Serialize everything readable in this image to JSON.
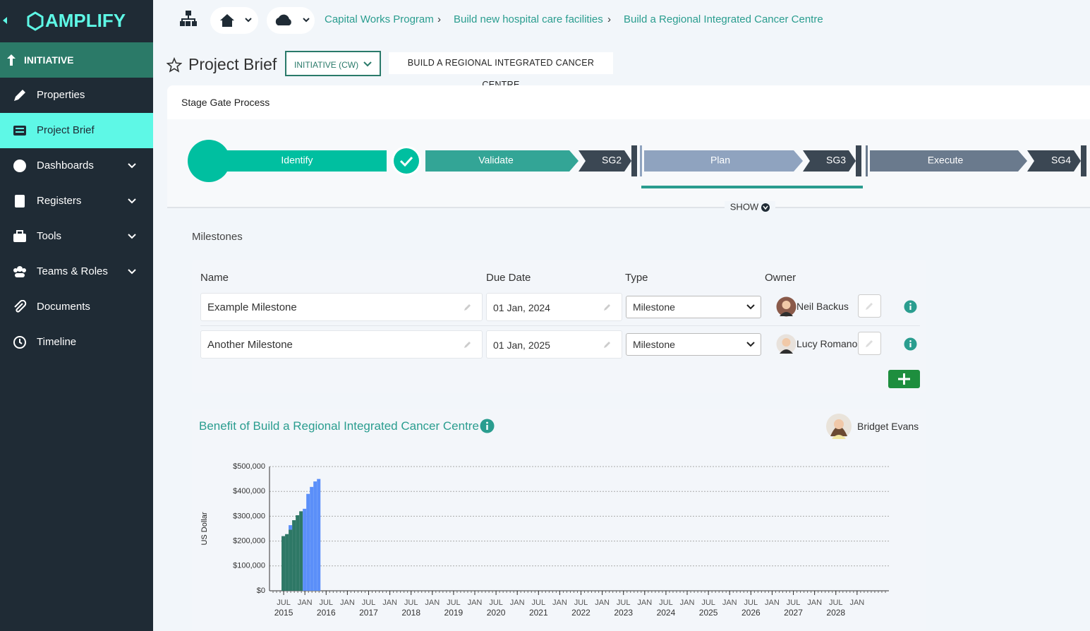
{
  "brand": "AMPLIFY",
  "sidebar": {
    "section": "INITIATIVE",
    "items": [
      "Properties",
      "Project Brief",
      "Dashboards",
      "Registers",
      "Tools",
      "Teams & Roles",
      "Documents",
      "Timeline"
    ]
  },
  "breadcrumbs": [
    "Capital Works Program",
    "Build new hospital care facilities",
    "Build a Regional Integrated Cancer Centre"
  ],
  "page": {
    "title": "Project Brief",
    "select": "INITIATIVE (CW)",
    "tag": "BUILD A REGIONAL INTEGRATED CANCER CENTRE"
  },
  "stage_gate": {
    "title": "Stage Gate Process",
    "stages": [
      "Identify",
      "Validate",
      "SG2",
      "Plan",
      "SG3",
      "Execute",
      "SG4"
    ],
    "toggle": "SHOW"
  },
  "milestones": {
    "title": "Milestones",
    "headers": [
      "Name",
      "Due Date",
      "Type",
      "Owner"
    ],
    "rows": [
      [
        "Example Milestone",
        "01 Jan, 2024",
        "Milestone",
        "Neil Backus"
      ],
      [
        "Another Milestone",
        "01 Jan, 2025",
        "Milestone",
        "Lucy Romano"
      ]
    ]
  },
  "benefit": {
    "title": "Benefit of Build a Regional Integrated Cancer Centre",
    "owner": "Bridget Evans"
  },
  "chart_data": {
    "type": "bar",
    "stacked": true,
    "ylabel": "US Dollar",
    "grid": true,
    "x": [
      "2015-07",
      "2015-08",
      "2015-09",
      "2015-10",
      "2015-11",
      "2015-12",
      "2016-01",
      "2016-02",
      "2016-03",
      "2016-04",
      "2016-05"
    ],
    "series": [
      {
        "color": "#2e7866",
        "values": [
          220000,
          228000,
          246000,
          284000,
          304000,
          320000,
          null,
          null,
          null,
          null,
          null
        ]
      },
      {
        "color": "#5b8ff9",
        "values": [
          null,
          null,
          18000,
          null,
          null,
          null,
          330000,
          390000,
          418000,
          440000,
          450000
        ]
      }
    ],
    "ylim": [
      0,
      500000
    ],
    "yticks": [
      {
        "value": 0,
        "label": "$0"
      },
      {
        "value": 100000,
        "label": "$100,000"
      },
      {
        "value": 200000,
        "label": "$200,000"
      },
      {
        "value": 300000,
        "label": "$300,000"
      },
      {
        "value": 400000,
        "label": "$400,000"
      },
      {
        "value": 500000,
        "label": "$500,000"
      }
    ],
    "xlim": [
      "2015-03",
      "2029-10"
    ],
    "xticks": [
      {
        "value": "2015-07",
        "label": "JUL",
        "year": "2015"
      },
      {
        "value": "2016-01",
        "label": "JAN"
      },
      {
        "value": "2016-07",
        "label": "JUL",
        "year": "2016"
      },
      {
        "value": "2017-01",
        "label": "JAN"
      },
      {
        "value": "2017-07",
        "label": "JUL",
        "year": "2017"
      },
      {
        "value": "2018-01",
        "label": "JAN"
      },
      {
        "value": "2018-07",
        "label": "JUL",
        "year": "2018"
      },
      {
        "value": "2019-01",
        "label": "JAN"
      },
      {
        "value": "2019-07",
        "label": "JUL",
        "year": "2019"
      },
      {
        "value": "2020-01",
        "label": "JAN"
      },
      {
        "value": "2020-07",
        "label": "JUL",
        "year": "2020"
      },
      {
        "value": "2021-01",
        "label": "JAN"
      },
      {
        "value": "2021-07",
        "label": "JUL",
        "year": "2021"
      },
      {
        "value": "2022-01",
        "label": "JAN"
      },
      {
        "value": "2022-07",
        "label": "JUL",
        "year": "2022"
      },
      {
        "value": "2023-01",
        "label": "JAN"
      },
      {
        "value": "2023-07",
        "label": "JUL",
        "year": "2023"
      },
      {
        "value": "2024-01",
        "label": "JAN"
      },
      {
        "value": "2024-07",
        "label": "JUL",
        "year": "2024"
      },
      {
        "value": "2025-01",
        "label": "JAN"
      },
      {
        "value": "2025-07",
        "label": "JUL",
        "year": "2025"
      },
      {
        "value": "2026-01",
        "label": "JAN"
      },
      {
        "value": "2026-07",
        "label": "JUL",
        "year": "2026"
      },
      {
        "value": "2027-01",
        "label": "JAN"
      },
      {
        "value": "2027-07",
        "label": "JUL",
        "year": "2027"
      },
      {
        "value": "2028-01",
        "label": "JAN"
      },
      {
        "value": "2028-07",
        "label": "JUL",
        "year": "2028"
      },
      {
        "value": "2029-01",
        "label": "JAN"
      }
    ]
  }
}
